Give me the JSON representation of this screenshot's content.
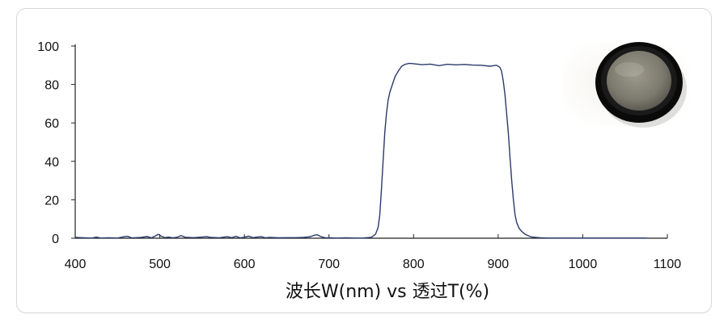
{
  "chart_data": {
    "type": "line",
    "title": "",
    "xlabel": "波长W(nm) vs 透过T(%)",
    "ylabel": "",
    "xlim": [
      400,
      1100
    ],
    "ylim": [
      0,
      100
    ],
    "x_ticks": [
      400,
      500,
      600,
      700,
      800,
      900,
      1000,
      1100
    ],
    "y_ticks": [
      0,
      20,
      40,
      60,
      80,
      100
    ],
    "grid": false,
    "line_color": "#2b3a6b",
    "series": [
      {
        "x": [
          400,
          410,
          420,
          425,
          430,
          440,
          450,
          458,
          462,
          466,
          470,
          478,
          485,
          490,
          495,
          498,
          502,
          506,
          510,
          515,
          520,
          525,
          530,
          540,
          550,
          555,
          560,
          570,
          580,
          585,
          590,
          595,
          600,
          605,
          610,
          615,
          620,
          625,
          630,
          640,
          650,
          660,
          670,
          678,
          683,
          686,
          690,
          695,
          700,
          710,
          720,
          730,
          740,
          750,
          755,
          758,
          760,
          762,
          764,
          766,
          768,
          770,
          772,
          775,
          778,
          782,
          786,
          790,
          795,
          800,
          810,
          820,
          830,
          840,
          850,
          860,
          870,
          880,
          890,
          898,
          902,
          904,
          906,
          908,
          910,
          912,
          914,
          916,
          918,
          920,
          922,
          925,
          928,
          932,
          936,
          940,
          950,
          960,
          980,
          1000,
          1020,
          1040,
          1060,
          1076
        ],
        "y": [
          0.4,
          0.2,
          0.1,
          0.6,
          0.1,
          0.2,
          0.1,
          0.8,
          1.0,
          0.3,
          0.2,
          0.4,
          0.9,
          0.2,
          1.2,
          2.0,
          1.0,
          0.3,
          0.6,
          0.2,
          0.4,
          1.4,
          0.5,
          0.3,
          0.6,
          0.9,
          0.4,
          0.2,
          0.8,
          0.3,
          1.0,
          0.2,
          0.5,
          1.1,
          0.3,
          0.6,
          0.8,
          0.2,
          0.4,
          0.2,
          0.3,
          0.3,
          0.4,
          0.8,
          1.6,
          1.8,
          0.9,
          0.3,
          0.2,
          0.1,
          0.2,
          0.1,
          0.1,
          0.5,
          2.0,
          5.5,
          12.0,
          25.0,
          40.0,
          55.0,
          65.0,
          72.0,
          76.0,
          80.0,
          84.0,
          87.0,
          89.5,
          90.5,
          91.0,
          90.8,
          90.3,
          90.6,
          89.8,
          90.5,
          90.2,
          90.4,
          90.1,
          90.0,
          89.5,
          90.0,
          89.0,
          87.0,
          82.0,
          75.0,
          65.0,
          55.0,
          42.0,
          30.0,
          20.0,
          12.0,
          8.0,
          5.0,
          3.5,
          2.0,
          1.2,
          0.6,
          0.2,
          0.1,
          0.1,
          0.1,
          0.1,
          0.1,
          0.1,
          0.1
        ]
      }
    ]
  },
  "image": {
    "photo_icon": "filter-lens-photo"
  }
}
